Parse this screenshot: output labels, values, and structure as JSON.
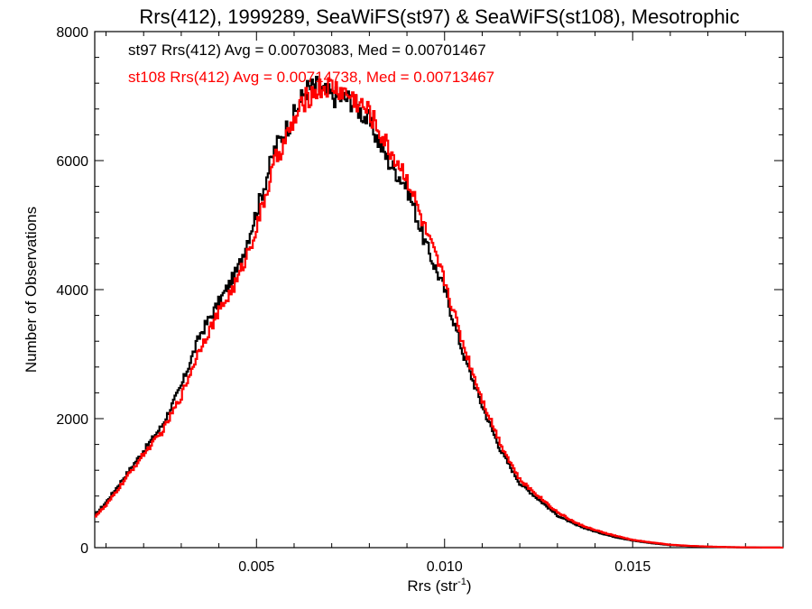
{
  "chart_data": {
    "type": "line",
    "title": "Rrs(412), 1999289, SeaWiFS(st97) & SeaWiFS(st108), Mesotrophic",
    "xlabel": "Rrs (str",
    "xlabel_sup": "-1",
    "xlabel_end": ")",
    "ylabel": "Number of Observations",
    "xlim": [
      0.0007,
      0.019
    ],
    "ylim": [
      0,
      8000
    ],
    "xticks": [
      0.005,
      0.01,
      0.015
    ],
    "xtick_labels": [
      "0.005",
      "0.010",
      "0.015"
    ],
    "yticks": [
      0,
      2000,
      4000,
      6000,
      8000
    ],
    "ytick_labels": [
      "0",
      "2000",
      "4000",
      "6000",
      "8000"
    ],
    "grid": false,
    "annotations": [
      {
        "text": "st97 Rrs(412) Avg = 0.00703083, Med = 0.00701467",
        "color": "#000000"
      },
      {
        "text": "st108 Rrs(412) Avg = 0.00714738, Med = 0.00713467",
        "color": "#ff0000"
      }
    ],
    "series": [
      {
        "name": "st97",
        "color": "#000000",
        "x": [
          0.0007,
          0.001,
          0.0015,
          0.002,
          0.0025,
          0.003,
          0.0035,
          0.004,
          0.0045,
          0.005,
          0.0055,
          0.006,
          0.0063,
          0.0066,
          0.007,
          0.0075,
          0.008,
          0.0085,
          0.009,
          0.0095,
          0.01,
          0.0105,
          0.011,
          0.0115,
          0.012,
          0.0125,
          0.013,
          0.0135,
          0.014,
          0.0145,
          0.015,
          0.0155,
          0.016,
          0.0165,
          0.017,
          0.0175,
          0.018,
          0.0185,
          0.019
        ],
        "y": [
          500,
          700,
          1100,
          1500,
          1900,
          2500,
          3300,
          3800,
          4300,
          5200,
          6200,
          6700,
          7100,
          7150,
          7000,
          6950,
          6600,
          6000,
          5600,
          4700,
          4000,
          3000,
          2200,
          1500,
          1000,
          750,
          500,
          350,
          250,
          170,
          110,
          70,
          40,
          25,
          15,
          8,
          4,
          2,
          1
        ]
      },
      {
        "name": "st108",
        "color": "#ff0000",
        "x": [
          0.0007,
          0.001,
          0.0015,
          0.002,
          0.0025,
          0.003,
          0.0035,
          0.004,
          0.0045,
          0.005,
          0.0055,
          0.006,
          0.0063,
          0.0066,
          0.007,
          0.0075,
          0.008,
          0.0085,
          0.009,
          0.0095,
          0.01,
          0.0105,
          0.011,
          0.0115,
          0.012,
          0.0125,
          0.013,
          0.0135,
          0.014,
          0.0145,
          0.015,
          0.0155,
          0.016,
          0.0165,
          0.017,
          0.0175,
          0.018,
          0.0185,
          0.019
        ],
        "y": [
          480,
          650,
          1050,
          1450,
          1800,
          2350,
          3100,
          3650,
          4150,
          4950,
          6000,
          6600,
          6950,
          7100,
          7150,
          7000,
          6750,
          6200,
          5750,
          4900,
          4150,
          3150,
          2300,
          1600,
          1050,
          800,
          550,
          380,
          270,
          190,
          120,
          80,
          45,
          28,
          17,
          9,
          5,
          2,
          1
        ]
      }
    ]
  }
}
